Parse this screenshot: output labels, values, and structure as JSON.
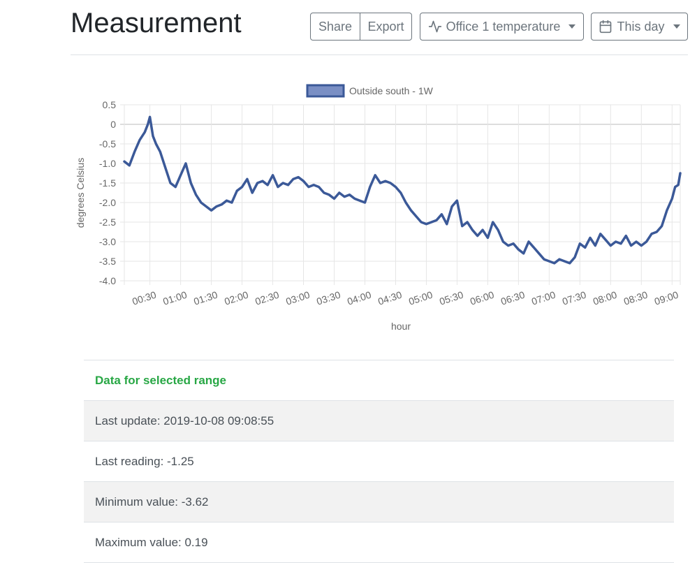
{
  "header": {
    "title": "Measurement",
    "share_label": "Share",
    "export_label": "Export",
    "sensor_label": "Office 1 temperature",
    "range_label": "This day"
  },
  "chart_data": {
    "type": "line",
    "title": "",
    "xlabel": "hour",
    "ylabel": "degrees Celsius",
    "legend_position": "top",
    "grid": true,
    "ylim": [
      -4.0,
      0.5
    ],
    "yticks": [
      0.5,
      0,
      -0.5,
      -1.0,
      -1.5,
      -2.0,
      -2.5,
      -3.0,
      -3.5,
      -4.0
    ],
    "ytick_labels": [
      "0.5",
      "0",
      "-0.5",
      "-1.0",
      "-1.5",
      "-2.0",
      "-2.5",
      "-3.0",
      "-3.5",
      "-4.0"
    ],
    "xlim": [
      "00:05",
      "09:08"
    ],
    "xticks": [
      "00:30",
      "01:00",
      "01:30",
      "02:00",
      "02:30",
      "03:00",
      "03:30",
      "04:00",
      "04:30",
      "05:00",
      "05:30",
      "06:00",
      "06:30",
      "07:00",
      "07:30",
      "08:00",
      "08:30",
      "09:00"
    ],
    "series": [
      {
        "name": "Outside south - 1W",
        "color": "#3b5998",
        "fill": "#7a8fc4",
        "x": [
          "00:05",
          "00:10",
          "00:15",
          "00:20",
          "00:25",
          "00:28",
          "00:30",
          "00:33",
          "00:36",
          "00:40",
          "00:45",
          "00:50",
          "00:55",
          "01:00",
          "01:05",
          "01:10",
          "01:15",
          "01:20",
          "01:25",
          "01:30",
          "01:35",
          "01:40",
          "01:45",
          "01:50",
          "01:55",
          "02:00",
          "02:05",
          "02:10",
          "02:15",
          "02:20",
          "02:25",
          "02:30",
          "02:35",
          "02:40",
          "02:45",
          "02:50",
          "02:55",
          "03:00",
          "03:05",
          "03:10",
          "03:15",
          "03:20",
          "03:25",
          "03:30",
          "03:35",
          "03:40",
          "03:45",
          "03:50",
          "03:55",
          "04:00",
          "04:05",
          "04:10",
          "04:15",
          "04:20",
          "04:25",
          "04:30",
          "04:35",
          "04:40",
          "04:45",
          "04:50",
          "04:55",
          "05:00",
          "05:05",
          "05:10",
          "05:15",
          "05:20",
          "05:25",
          "05:30",
          "05:35",
          "05:40",
          "05:45",
          "05:50",
          "05:55",
          "06:00",
          "06:05",
          "06:10",
          "06:15",
          "06:20",
          "06:25",
          "06:30",
          "06:35",
          "06:40",
          "06:45",
          "06:50",
          "06:55",
          "07:00",
          "07:05",
          "07:10",
          "07:15",
          "07:20",
          "07:25",
          "07:30",
          "07:35",
          "07:40",
          "07:45",
          "07:50",
          "07:55",
          "08:00",
          "08:05",
          "08:10",
          "08:15",
          "08:20",
          "08:25",
          "08:30",
          "08:35",
          "08:40",
          "08:45",
          "08:50",
          "08:55",
          "09:00",
          "09:03",
          "09:06",
          "09:08"
        ],
        "values": [
          -0.95,
          -1.05,
          -0.7,
          -0.4,
          -0.2,
          0.0,
          0.19,
          -0.3,
          -0.5,
          -0.7,
          -1.1,
          -1.5,
          -1.6,
          -1.3,
          -1.0,
          -1.5,
          -1.8,
          -2.0,
          -2.1,
          -2.2,
          -2.1,
          -2.05,
          -1.95,
          -2.0,
          -1.7,
          -1.6,
          -1.4,
          -1.75,
          -1.5,
          -1.45,
          -1.55,
          -1.3,
          -1.6,
          -1.5,
          -1.55,
          -1.4,
          -1.35,
          -1.45,
          -1.6,
          -1.55,
          -1.6,
          -1.75,
          -1.8,
          -1.9,
          -1.75,
          -1.85,
          -1.8,
          -1.9,
          -1.95,
          -2.0,
          -1.6,
          -1.3,
          -1.5,
          -1.45,
          -1.5,
          -1.6,
          -1.75,
          -2.0,
          -2.2,
          -2.35,
          -2.5,
          -2.55,
          -2.5,
          -2.45,
          -2.3,
          -2.55,
          -2.1,
          -1.95,
          -2.6,
          -2.5,
          -2.7,
          -2.85,
          -2.7,
          -2.9,
          -2.5,
          -2.7,
          -3.0,
          -3.1,
          -3.05,
          -3.2,
          -3.3,
          -3.0,
          -3.15,
          -3.3,
          -3.45,
          -3.5,
          -3.55,
          -3.45,
          -3.5,
          -3.55,
          -3.4,
          -3.05,
          -3.15,
          -2.9,
          -3.1,
          -2.8,
          -2.95,
          -3.1,
          -3.0,
          -3.05,
          -2.85,
          -3.1,
          -3.0,
          -3.1,
          -3.0,
          -2.8,
          -2.75,
          -2.6,
          -2.2,
          -1.9,
          -1.6,
          -1.55,
          -1.25
        ]
      }
    ]
  },
  "info": {
    "heading": "Data for selected range",
    "rows": [
      "Last update: 2019-10-08 09:08:55",
      "Last reading: -1.25",
      "Minimum value: -3.62",
      "Maximum value: 0.19"
    ]
  }
}
